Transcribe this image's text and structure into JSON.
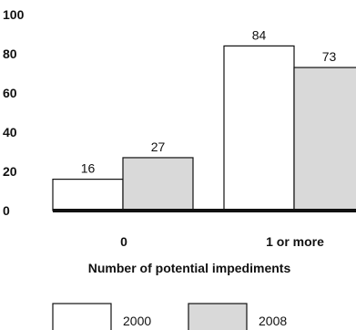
{
  "chart_data": {
    "type": "bar",
    "categories": [
      "0",
      "1 or more"
    ],
    "series": [
      {
        "name": "2000",
        "values": [
          16,
          84
        ],
        "color": "#ffffff"
      },
      {
        "name": "2008",
        "values": [
          27,
          73
        ],
        "color": "#d9d9d9"
      }
    ],
    "xlabel": "Number of potential impediments",
    "ylim": [
      0,
      100
    ],
    "yticks": [
      0,
      20,
      40,
      60,
      80,
      100
    ],
    "grid": false,
    "legend_position": "bottom"
  }
}
